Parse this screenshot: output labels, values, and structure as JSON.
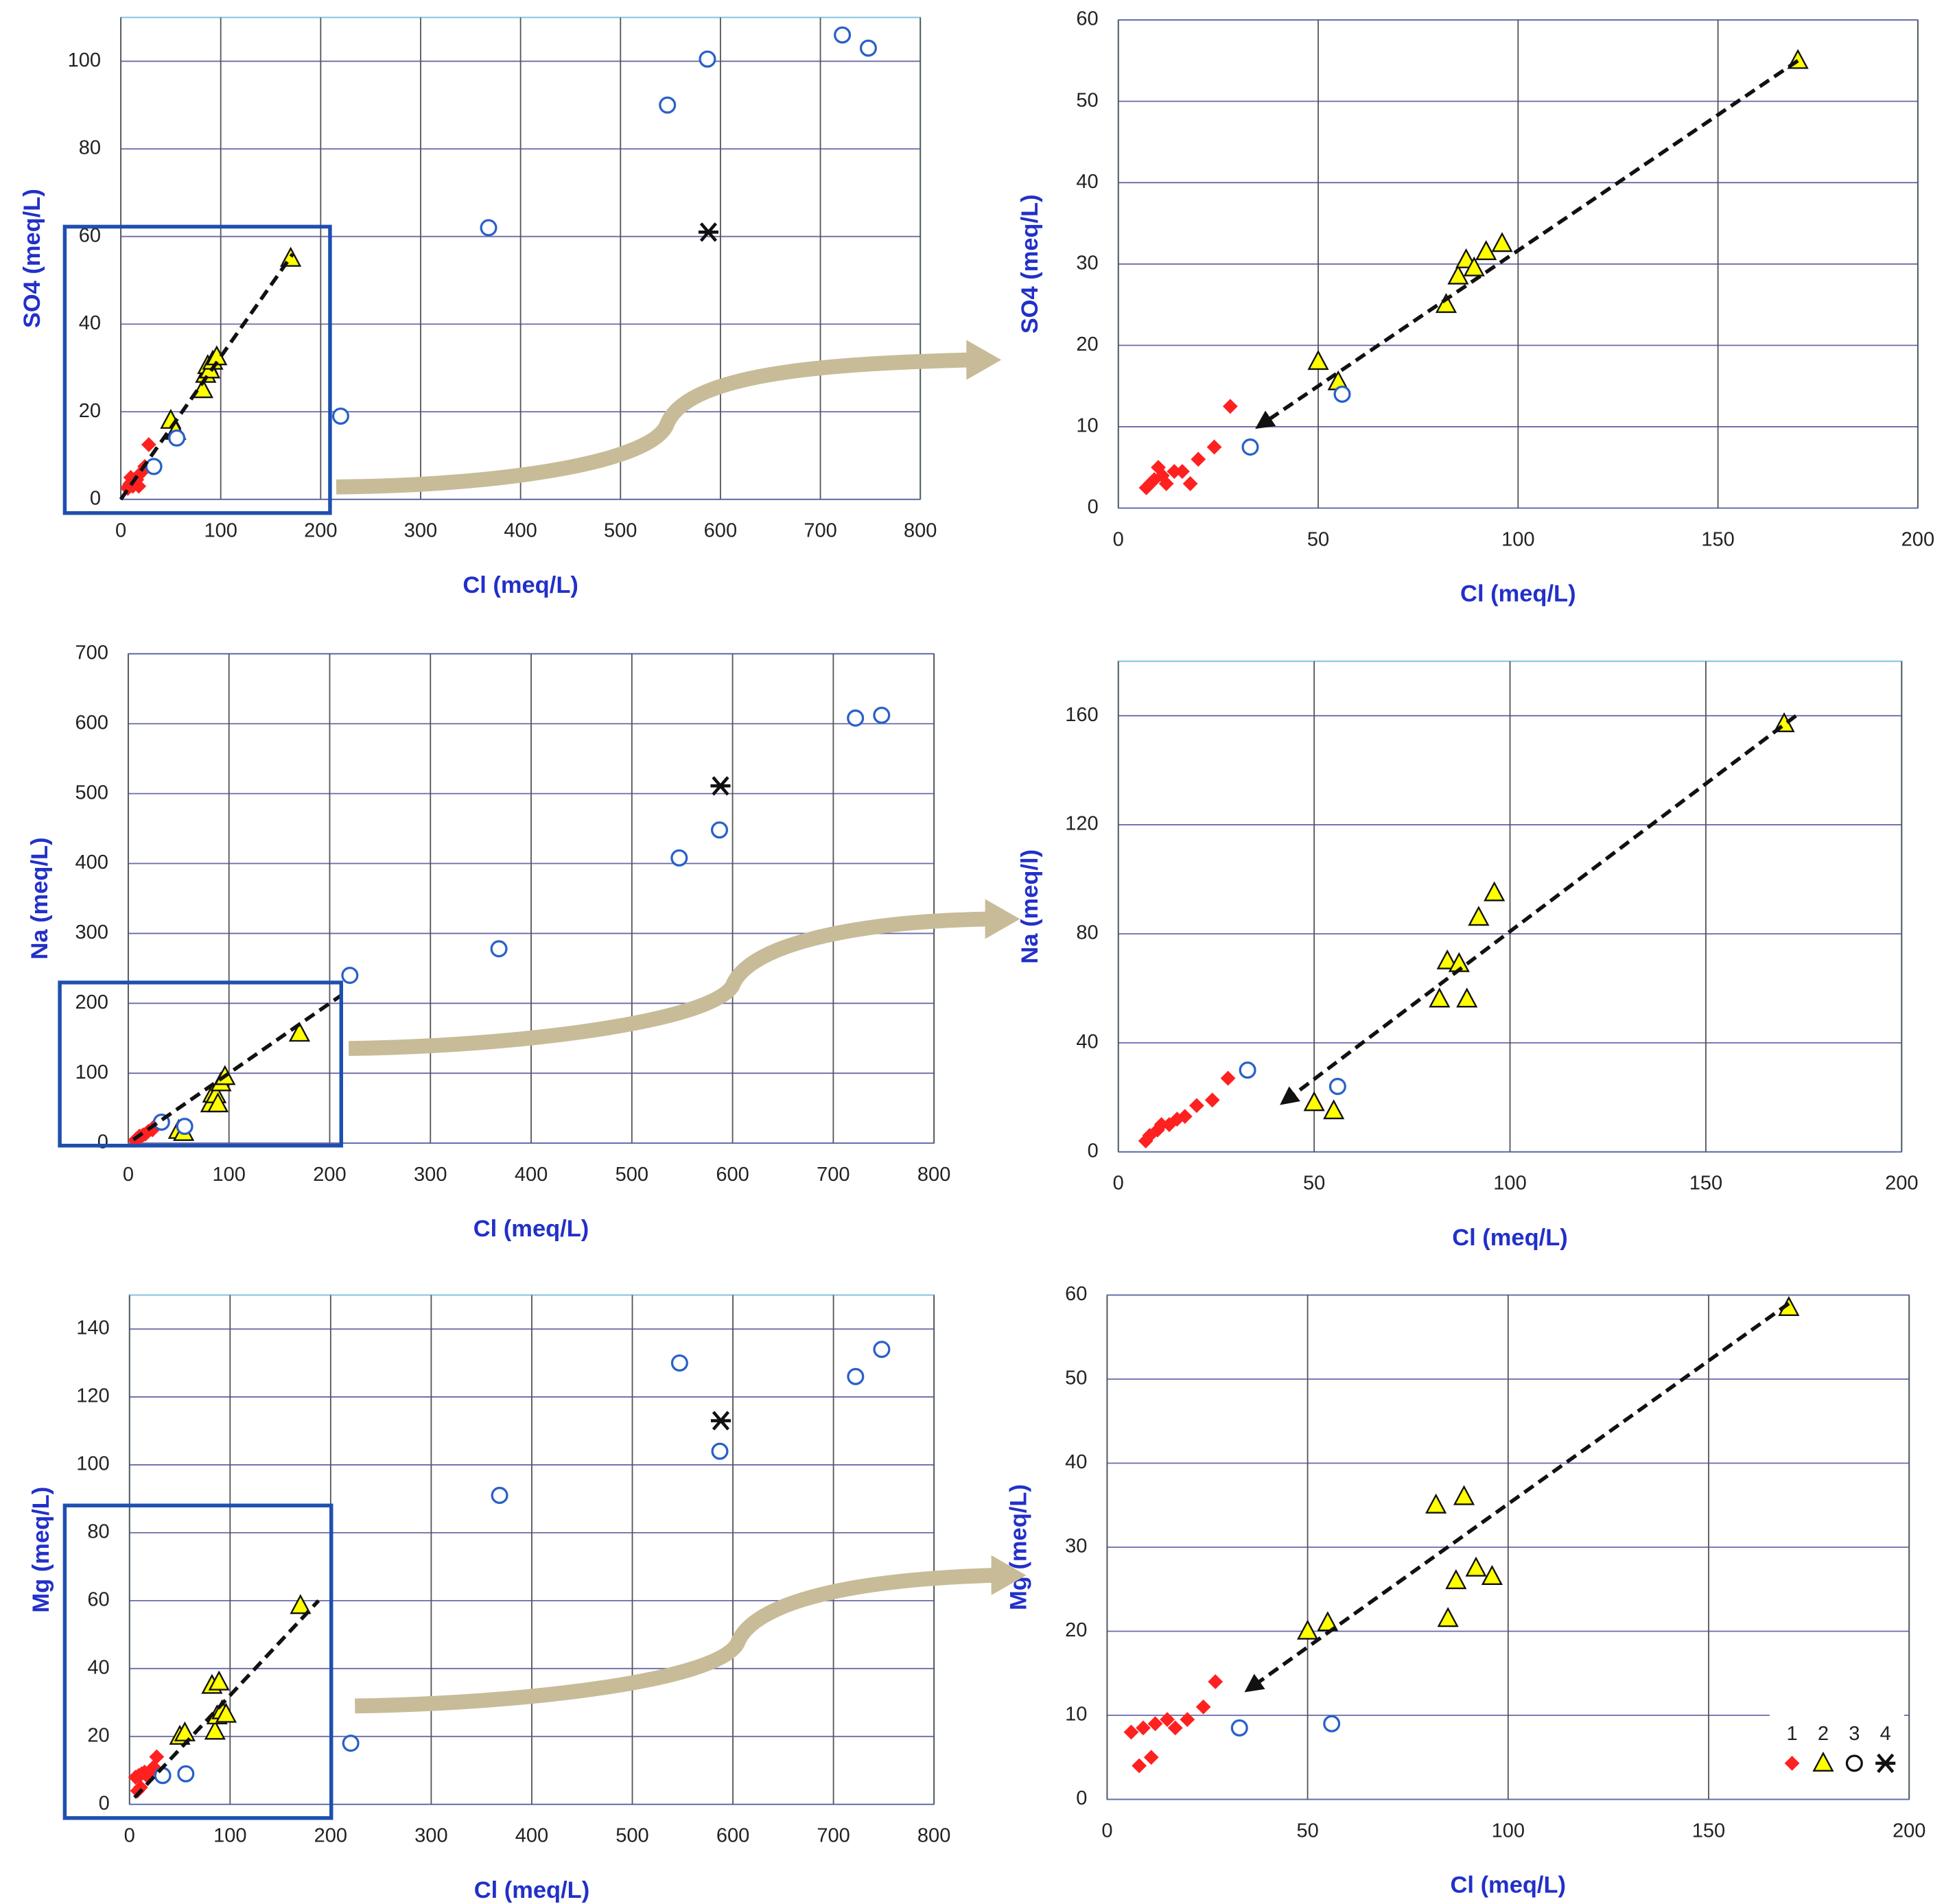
{
  "chart_data": [
    {
      "type": "scatter",
      "xlabel": "Cl (meq/L)",
      "ylabel": "SO4 (meq/L)",
      "grid": true,
      "xlim": [
        0,
        800
      ],
      "xticks": [
        0,
        100,
        200,
        300,
        400,
        500,
        600,
        700,
        800
      ],
      "ylim": [
        0,
        110
      ],
      "yticks": [
        0,
        20,
        40,
        60,
        80,
        100
      ],
      "series": [
        {
          "marker": "diamond",
          "color": "#ff2020",
          "x": [
            7,
            8,
            9,
            10,
            11,
            12,
            14,
            16,
            18,
            20,
            24,
            28
          ],
          "values": [
            2.5,
            3,
            3.5,
            5,
            4,
            3,
            4.5,
            4.5,
            3,
            6,
            7.5,
            12.5
          ]
        },
        {
          "marker": "triangle",
          "color": "#ffff00",
          "x": [
            50,
            55,
            82,
            85,
            87,
            89,
            92,
            96,
            170
          ],
          "values": [
            18,
            15.5,
            25,
            28.5,
            30.5,
            29.5,
            31.5,
            32.5,
            55
          ]
        },
        {
          "marker": "circle",
          "color": "#2a60c8",
          "x": [
            33,
            56,
            220,
            368,
            547,
            587,
            722,
            748
          ],
          "values": [
            7.5,
            14,
            19,
            62,
            90,
            100.5,
            106,
            103
          ]
        },
        {
          "marker": "star",
          "color": "#111111",
          "x": [
            588
          ],
          "values": [
            61
          ]
        }
      ],
      "trend": {
        "x": [
          0,
          172
        ],
        "y": [
          0,
          56
        ],
        "arrow": false
      }
    },
    {
      "type": "scatter",
      "xlabel": "Cl (meq/L)",
      "ylabel": "SO4 (meq/L)",
      "grid": true,
      "xlim": [
        0,
        200
      ],
      "xticks": [
        0,
        50,
        100,
        150,
        200
      ],
      "ylim": [
        0,
        60
      ],
      "yticks": [
        0,
        10,
        20,
        30,
        40,
        50,
        60
      ],
      "series": [
        {
          "marker": "diamond",
          "color": "#ff2020",
          "x": [
            7,
            8,
            9,
            10,
            11,
            12,
            14,
            16,
            18,
            20,
            24,
            28
          ],
          "values": [
            2.5,
            3,
            3.5,
            5,
            4,
            3,
            4.5,
            4.5,
            3,
            6,
            7.5,
            12.5
          ]
        },
        {
          "marker": "triangle",
          "color": "#ffff00",
          "x": [
            50,
            55,
            82,
            85,
            87,
            89,
            92,
            96,
            170
          ],
          "values": [
            18,
            15.5,
            25,
            28.5,
            30.5,
            29.5,
            31.5,
            32.5,
            55
          ]
        },
        {
          "marker": "circle",
          "color": "#2a60c8",
          "x": [
            33,
            56
          ],
          "values": [
            7.5,
            14
          ]
        }
      ],
      "trend": {
        "x": [
          170,
          35
        ],
        "y": [
          55,
          10
        ],
        "arrow": true
      }
    },
    {
      "type": "scatter",
      "xlabel": "Cl (meq/L)",
      "ylabel": "Na (meq/L)",
      "grid": true,
      "xlim": [
        0,
        800
      ],
      "xticks": [
        0,
        100,
        200,
        300,
        400,
        500,
        600,
        700,
        800
      ],
      "ylim": [
        0,
        700
      ],
      "yticks": [
        0,
        100,
        200,
        300,
        400,
        500,
        600,
        700
      ],
      "series": [
        {
          "marker": "diamond",
          "color": "#ff2020",
          "x": [
            7,
            8,
            10,
            11,
            13,
            15,
            17,
            20,
            24,
            28
          ],
          "values": [
            4,
            6,
            8,
            10,
            10,
            12,
            13,
            17,
            19,
            27
          ]
        },
        {
          "marker": "triangle",
          "color": "#ffff00",
          "x": [
            50,
            55,
            82,
            84,
            87,
            89,
            92,
            96,
            170
          ],
          "values": [
            18,
            15,
            56,
            70,
            69,
            56,
            86,
            95,
            157
          ]
        },
        {
          "marker": "circle",
          "color": "#2a60c8",
          "x": [
            33,
            56,
            220,
            368,
            547,
            587,
            722,
            748
          ],
          "values": [
            30,
            24,
            240,
            278,
            408,
            448,
            608,
            612
          ]
        },
        {
          "marker": "star",
          "color": "#111111",
          "x": [
            588
          ],
          "values": [
            511
          ]
        }
      ],
      "trend": {
        "x": [
          5,
          212
        ],
        "y": [
          5,
          212
        ],
        "arrow": false
      }
    },
    {
      "type": "scatter",
      "xlabel": "Cl (meq/L)",
      "ylabel": "Na (meq/l)",
      "grid": true,
      "xlim": [
        0,
        200
      ],
      "xticks": [
        0,
        50,
        100,
        150,
        200
      ],
      "ylim": [
        0,
        180
      ],
      "yticks": [
        0,
        40,
        80,
        120,
        160
      ],
      "series": [
        {
          "marker": "diamond",
          "color": "#ff2020",
          "x": [
            7,
            8,
            10,
            11,
            13,
            15,
            17,
            20,
            24,
            28
          ],
          "values": [
            4,
            6,
            8,
            10,
            10,
            12,
            13,
            17,
            19,
            27
          ]
        },
        {
          "marker": "triangle",
          "color": "#ffff00",
          "x": [
            50,
            55,
            82,
            84,
            87,
            89,
            92,
            96,
            170
          ],
          "values": [
            18,
            15,
            56,
            70,
            69,
            56,
            86,
            95,
            157
          ]
        },
        {
          "marker": "circle",
          "color": "#2a60c8",
          "x": [
            33,
            56
          ],
          "values": [
            30,
            24
          ]
        }
      ],
      "trend": {
        "x": [
          173,
          42
        ],
        "y": [
          160,
          18
        ],
        "arrow": true
      }
    },
    {
      "type": "scatter",
      "xlabel": "Cl (meq/L)",
      "ylabel": "Mg (meq/L)",
      "grid": true,
      "xlim": [
        0,
        800
      ],
      "xticks": [
        0,
        100,
        200,
        300,
        400,
        500,
        600,
        700,
        800
      ],
      "ylim": [
        0,
        150
      ],
      "yticks": [
        0,
        20,
        40,
        60,
        80,
        100,
        120,
        140
      ],
      "series": [
        {
          "marker": "diamond",
          "color": "#ff2020",
          "x": [
            6,
            8,
            9,
            11,
            12,
            15,
            17,
            20,
            24,
            27
          ],
          "values": [
            8,
            4,
            8.5,
            5,
            9,
            9.5,
            8.5,
            9.5,
            11,
            14
          ]
        },
        {
          "marker": "triangle",
          "color": "#ffff00",
          "x": [
            50,
            55,
            82,
            85,
            87,
            89,
            92,
            96,
            170
          ],
          "values": [
            20,
            21,
            35,
            21.5,
            26,
            36,
            27.5,
            26.5,
            58.5
          ]
        },
        {
          "marker": "circle",
          "color": "#2a60c8",
          "x": [
            33,
            56,
            220,
            368,
            547,
            587,
            722,
            748
          ],
          "values": [
            8.5,
            9,
            18,
            91,
            130,
            104,
            126,
            134
          ]
        },
        {
          "marker": "star",
          "color": "#111111",
          "x": [
            588
          ],
          "values": [
            113
          ]
        }
      ],
      "trend": {
        "x": [
          5,
          188
        ],
        "y": [
          2,
          60
        ],
        "arrow": false
      }
    },
    {
      "type": "scatter",
      "xlabel": "Cl (meq/L)",
      "ylabel": "Mg (meq/L)",
      "grid": true,
      "legend": "lower right",
      "xlim": [
        0,
        200
      ],
      "xticks": [
        0,
        50,
        100,
        150,
        200
      ],
      "ylim": [
        0,
        60
      ],
      "yticks": [
        0,
        10,
        20,
        30,
        40,
        50,
        60
      ],
      "series": [
        {
          "name": "1",
          "marker": "diamond",
          "color": "#ff2020",
          "x": [
            6,
            8,
            9,
            11,
            12,
            15,
            17,
            20,
            24,
            27
          ],
          "values": [
            8,
            4,
            8.5,
            5,
            9,
            9.5,
            8.5,
            9.5,
            11,
            14
          ]
        },
        {
          "name": "2",
          "marker": "triangle",
          "color": "#ffff00",
          "x": [
            50,
            55,
            82,
            85,
            87,
            89,
            92,
            96,
            170
          ],
          "values": [
            20,
            21,
            35,
            21.5,
            26,
            36,
            27.5,
            26.5,
            58.5
          ]
        },
        {
          "name": "3",
          "marker": "circle",
          "color": "#2a60c8",
          "x": [
            33,
            56
          ],
          "values": [
            8.5,
            9
          ]
        },
        {
          "name": "4",
          "marker": "star",
          "color": "#111111",
          "x": [],
          "values": []
        }
      ],
      "trend": {
        "x": [
          170,
          35
        ],
        "y": [
          59,
          13
        ],
        "arrow": true
      }
    }
  ]
}
